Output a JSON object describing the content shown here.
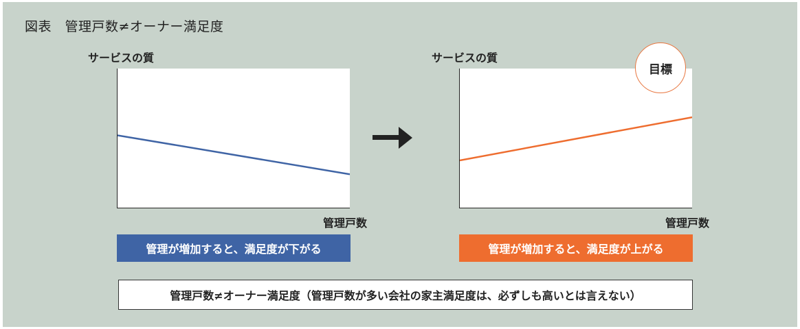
{
  "figure_title": "図表　管理戸数≠オーナー満足度",
  "colors": {
    "background": "#c8d3cb",
    "blue": "#3f64a5",
    "orange": "#ee6d2f"
  },
  "left_chart": {
    "ylabel": "サービスの質",
    "xlabel": "管理戸数",
    "caption": "管理が増加すると、満足度が下がる"
  },
  "right_chart": {
    "ylabel": "サービスの質",
    "xlabel": "管理戸数",
    "caption": "管理が増加すると、満足度が上がる",
    "badge": "目標"
  },
  "bottom_note": "管理戸数≠オーナー満足度（管理戸数が多い会社の家主満足度は、必ずしも高いとは言えない）",
  "chart_data": [
    {
      "type": "line",
      "title": "",
      "xlabel": "管理戸数",
      "ylabel": "サービスの質",
      "xlim": [
        0,
        1
      ],
      "ylim": [
        0,
        1
      ],
      "series": [
        {
          "color": "#3f64a5",
          "x": [
            0,
            1
          ],
          "y": [
            0.52,
            0.24
          ]
        }
      ],
      "trend": "decreasing"
    },
    {
      "type": "line",
      "title": "",
      "xlabel": "管理戸数",
      "ylabel": "サービスの質",
      "xlim": [
        0,
        1
      ],
      "ylim": [
        0,
        1
      ],
      "series": [
        {
          "color": "#ee6d2f",
          "x": [
            0,
            1
          ],
          "y": [
            0.34,
            0.65
          ]
        }
      ],
      "trend": "increasing"
    }
  ]
}
